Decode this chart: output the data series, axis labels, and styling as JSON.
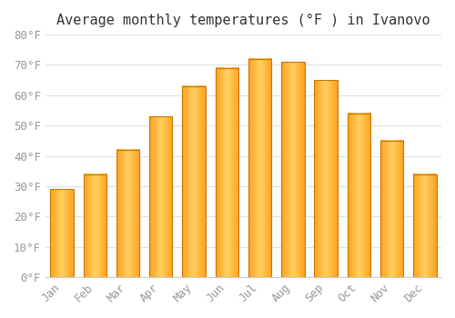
{
  "title": "Average monthly temperatures (°F ) in Ivanovo",
  "months": [
    "Jan",
    "Feb",
    "Mar",
    "Apr",
    "May",
    "Jun",
    "Jul",
    "Aug",
    "Sep",
    "Oct",
    "Nov",
    "Dec"
  ],
  "values": [
    29,
    34,
    42,
    53,
    63,
    69,
    72,
    71,
    65,
    54,
    45,
    34
  ],
  "bar_color_center": "#FFD060",
  "bar_color_edge": "#FFA020",
  "bar_edge_color": "#C87800",
  "background_color": "#FFFFFF",
  "plot_bg_color": "#FFFFFF",
  "ylim": [
    0,
    80
  ],
  "yticks": [
    0,
    10,
    20,
    30,
    40,
    50,
    60,
    70,
    80
  ],
  "ytick_labels": [
    "0°F",
    "10°F",
    "20°F",
    "30°F",
    "40°F",
    "50°F",
    "60°F",
    "70°F",
    "80°F"
  ],
  "grid_color": "#E0E0E0",
  "title_fontsize": 11,
  "tick_fontsize": 9,
  "title_color": "#333333",
  "tick_color": "#999999",
  "bar_width": 0.7
}
